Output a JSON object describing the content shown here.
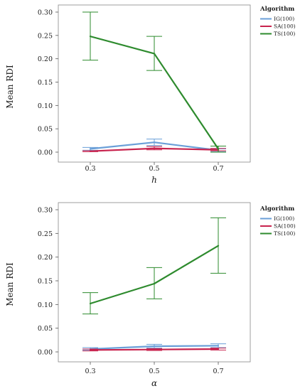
{
  "chart_data": [
    {
      "type": "line",
      "xlabel": "h",
      "ylabel": "Mean RDI",
      "categories": [
        "0.3",
        "0.5",
        "0.7"
      ],
      "ylim": [
        0,
        0.3
      ],
      "yticks": [
        "0.00",
        "0.05",
        "0.10",
        "0.15",
        "0.20",
        "0.25",
        "0.30"
      ],
      "error_bars": true,
      "legend": {
        "title": "Algorithm",
        "placement": "right"
      },
      "series": [
        {
          "name": "IG(100)",
          "color": "#6a9fd8",
          "values": [
            0.007,
            0.021,
            0.004
          ],
          "err_low": [
            0.004,
            0.014,
            0.001
          ],
          "err_high": [
            0.01,
            0.028,
            0.007
          ]
        },
        {
          "name": "SA(100)",
          "color": "#c8234e",
          "values": [
            0.002,
            0.008,
            0.005
          ],
          "err_low": [
            0.001,
            0.005,
            0.003
          ],
          "err_high": [
            0.003,
            0.012,
            0.008
          ]
        },
        {
          "name": "TS(100)",
          "color": "#2e8b2e",
          "values": [
            0.248,
            0.211,
            0.007
          ],
          "err_low": [
            0.197,
            0.175,
            0.0
          ],
          "err_high": [
            0.3,
            0.248,
            0.013
          ]
        }
      ]
    },
    {
      "type": "line",
      "xlabel": "α",
      "ylabel": "Mean RDI",
      "categories": [
        "0.3",
        "0.5",
        "0.7"
      ],
      "ylim": [
        0,
        0.3
      ],
      "yticks": [
        "0.00",
        "0.05",
        "0.10",
        "0.15",
        "0.20",
        "0.25",
        "0.30"
      ],
      "error_bars": true,
      "legend": {
        "title": "Algorithm",
        "placement": "right"
      },
      "series": [
        {
          "name": "IG(100)",
          "color": "#6a9fd8",
          "values": [
            0.006,
            0.012,
            0.013
          ],
          "err_low": [
            0.004,
            0.008,
            0.009
          ],
          "err_high": [
            0.009,
            0.016,
            0.017
          ]
        },
        {
          "name": "SA(100)",
          "color": "#c8234e",
          "values": [
            0.004,
            0.005,
            0.006
          ],
          "err_low": [
            0.002,
            0.003,
            0.004
          ],
          "err_high": [
            0.006,
            0.007,
            0.008
          ]
        },
        {
          "name": "TS(100)",
          "color": "#2e8b2e",
          "values": [
            0.102,
            0.144,
            0.224
          ],
          "err_low": [
            0.08,
            0.112,
            0.166
          ],
          "err_high": [
            0.125,
            0.178,
            0.283
          ]
        }
      ]
    }
  ]
}
